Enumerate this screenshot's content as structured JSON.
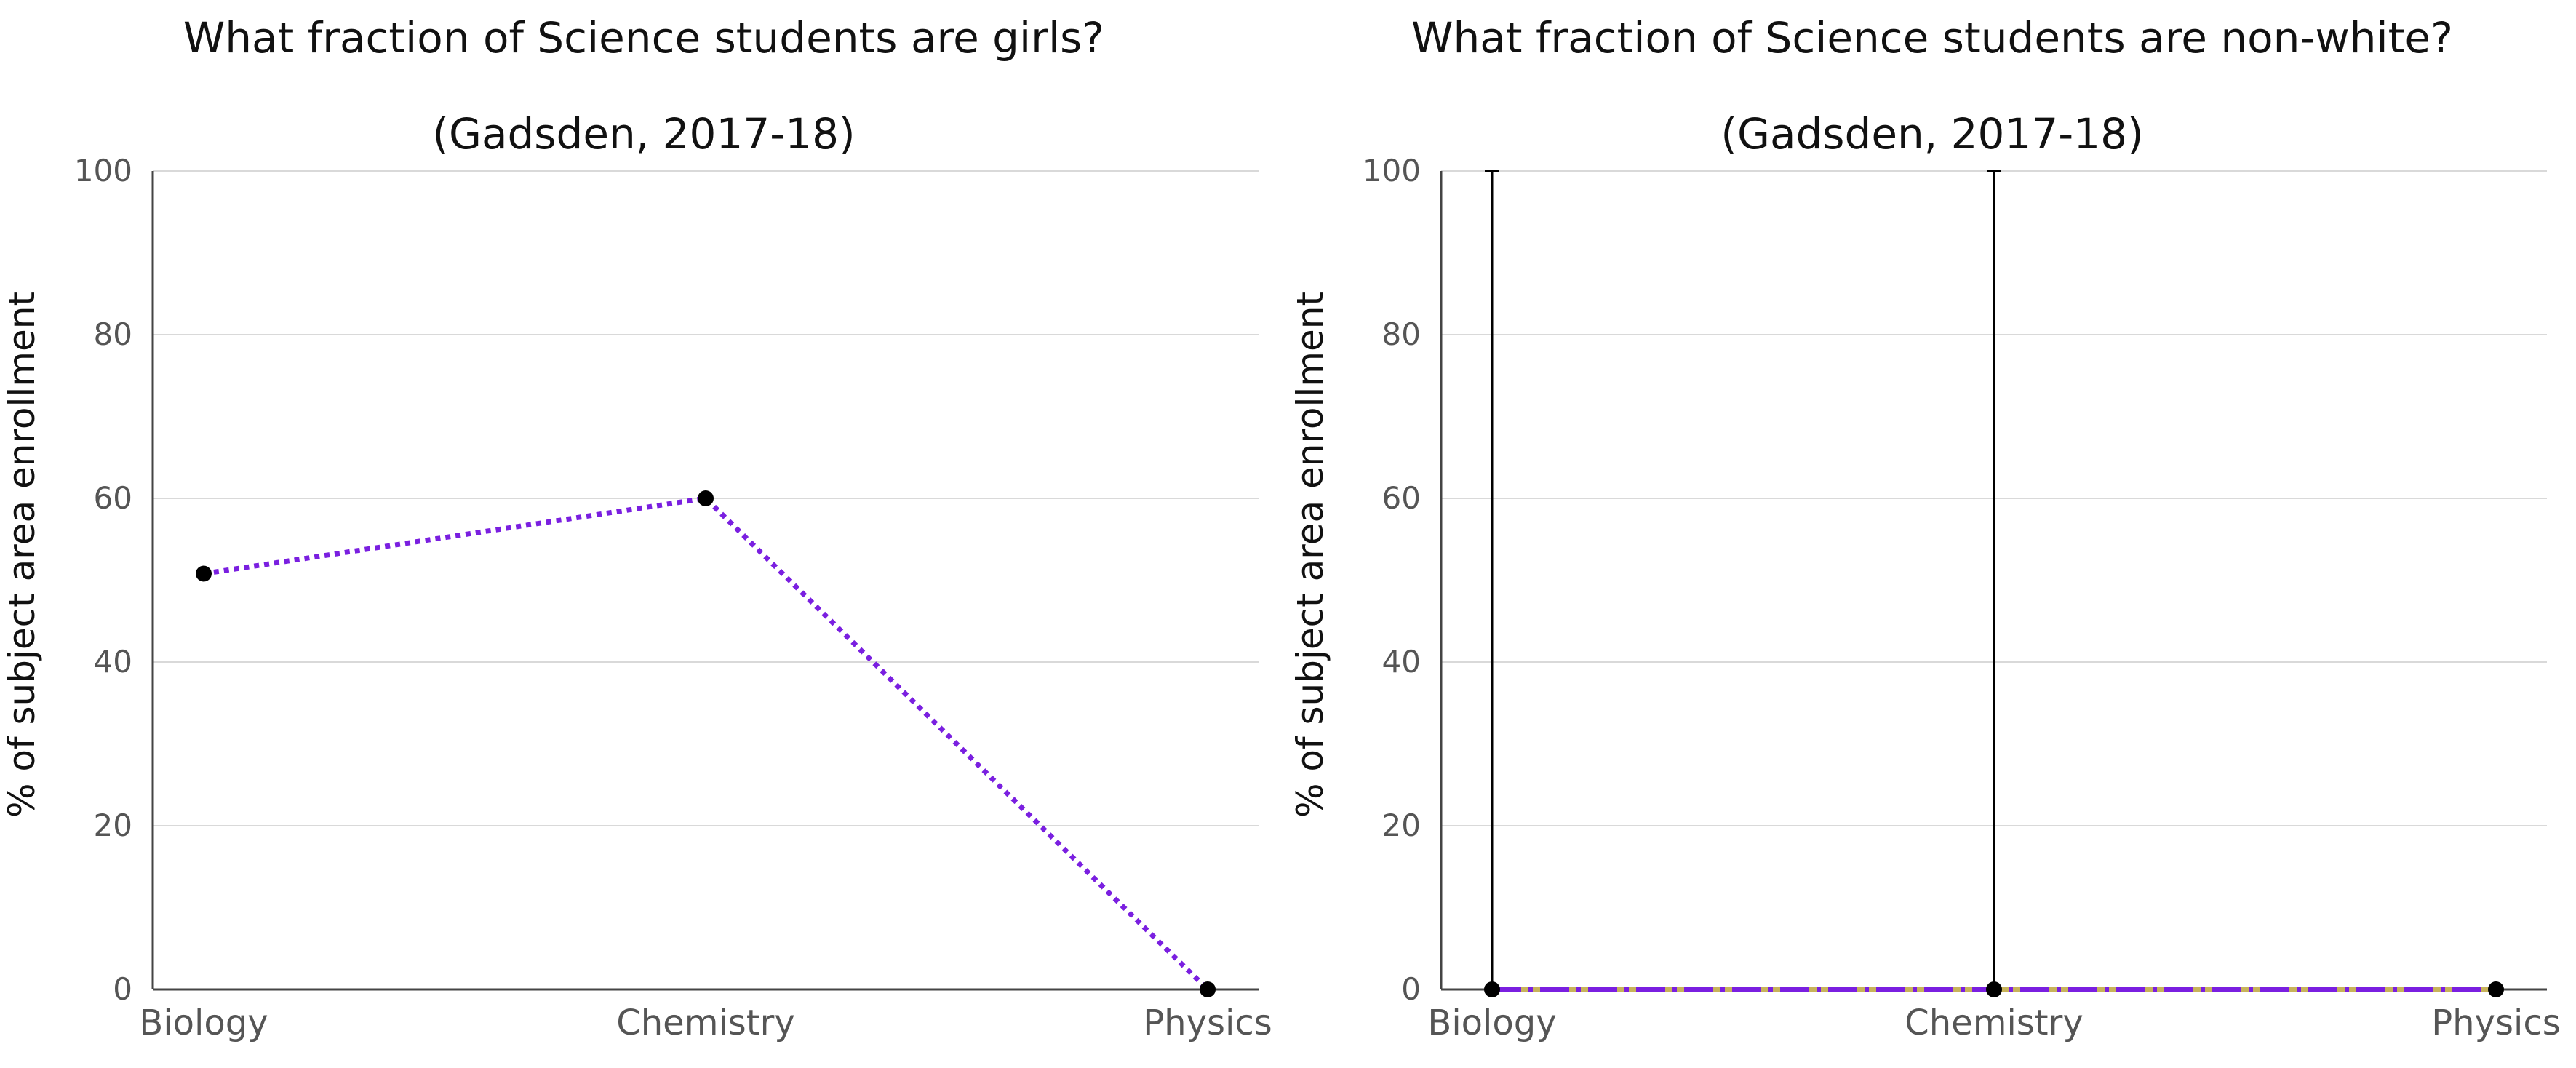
{
  "chart_data": [
    {
      "type": "line",
      "title": "What fraction of Science students are girls?",
      "subtitle": "(Gadsden, 2017-18)",
      "xlabel": "",
      "ylabel": "% of subject area enrollment",
      "categories": [
        "Biology",
        "Chemistry",
        "Physics"
      ],
      "ylim": [
        0,
        100
      ],
      "yticks": [
        0,
        20,
        40,
        60,
        80,
        100
      ],
      "grid": true,
      "series": [
        {
          "values": [
            50.8,
            60.0,
            0.0
          ],
          "line_color": "#7a1fe0",
          "line_style": "dotted",
          "marker_color": "#000000"
        }
      ]
    },
    {
      "type": "line",
      "title": "What fraction of Science students are non-white?",
      "subtitle": "(Gadsden, 2017-18)",
      "xlabel": "",
      "ylabel": "% of subject area enrollment",
      "categories": [
        "Biology",
        "Chemistry",
        "Physics"
      ],
      "ylim": [
        0,
        100
      ],
      "yticks": [
        0,
        20,
        40,
        60,
        80,
        100
      ],
      "grid": true,
      "series": [
        {
          "values": [
            0.0,
            0.0,
            0.0
          ],
          "line_color": "#7a1fe0",
          "line_style": "dash-dot",
          "marker_color": "#000000",
          "error_bars": [
            [
              0,
              100
            ],
            [
              0,
              100
            ],
            null
          ]
        }
      ]
    }
  ]
}
